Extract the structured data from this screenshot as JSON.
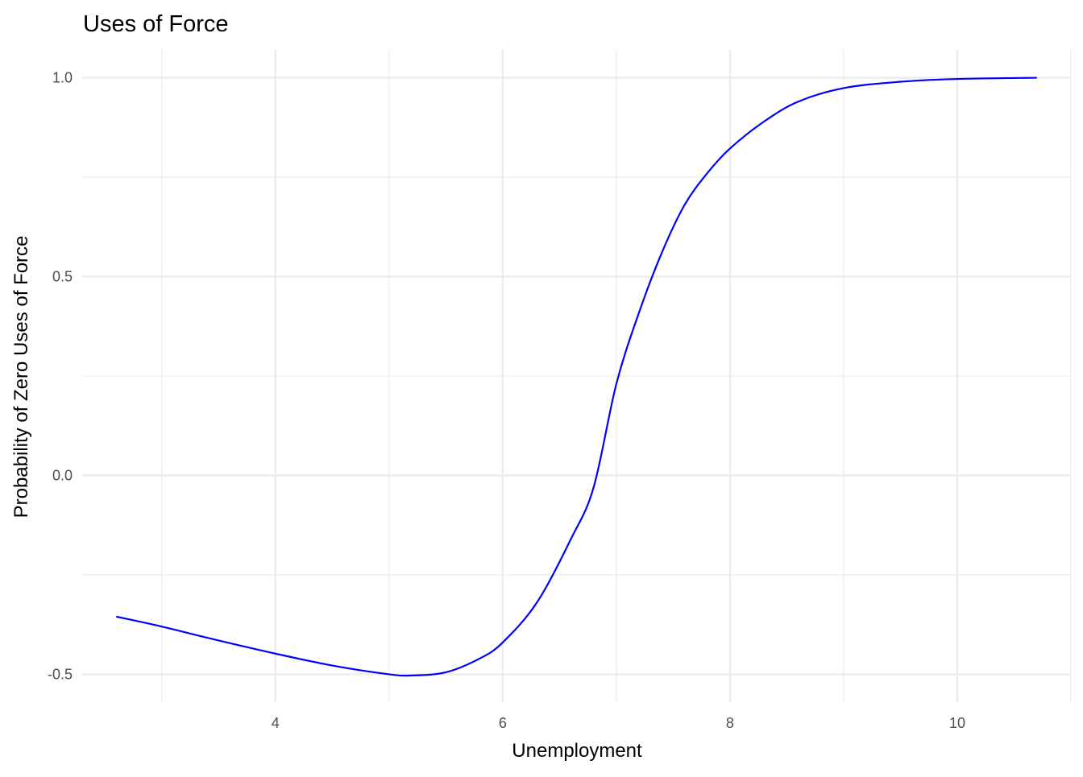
{
  "chart_data": {
    "type": "line",
    "title": "Uses of Force",
    "xlabel": "Unemployment",
    "ylabel": "Probability of Zero Uses of Force",
    "xlim": [
      2.3,
      11.0
    ],
    "ylim": [
      -0.57,
      1.07
    ],
    "x_ticks": [
      4,
      6,
      8,
      10
    ],
    "x_tick_labels": [
      "4",
      "6",
      "8",
      "10"
    ],
    "x_minor_ticks": [
      3,
      5,
      7,
      9,
      11
    ],
    "y_ticks": [
      -0.5,
      0.0,
      0.5,
      1.0
    ],
    "y_tick_labels": [
      "-0.5",
      "0.0",
      "0.5",
      "1.0"
    ],
    "y_minor_ticks": [
      -0.25,
      0.25,
      0.75
    ],
    "grid": true,
    "legend": "none",
    "series": [
      {
        "color": "#0000ff",
        "x": [
          2.6,
          3.0,
          3.5,
          4.0,
          4.5,
          5.0,
          5.2,
          5.5,
          5.8,
          6.0,
          6.3,
          6.6,
          6.8,
          7.0,
          7.2,
          7.4,
          7.6,
          7.8,
          8.0,
          8.3,
          8.6,
          9.0,
          9.5,
          10.0,
          10.7
        ],
        "y": [
          -0.355,
          -0.38,
          -0.415,
          -0.448,
          -0.478,
          -0.5,
          -0.503,
          -0.495,
          -0.46,
          -0.42,
          -0.32,
          -0.16,
          -0.03,
          0.23,
          0.41,
          0.56,
          0.68,
          0.76,
          0.822,
          0.89,
          0.94,
          0.974,
          0.99,
          0.997,
          1.0
        ]
      }
    ]
  }
}
